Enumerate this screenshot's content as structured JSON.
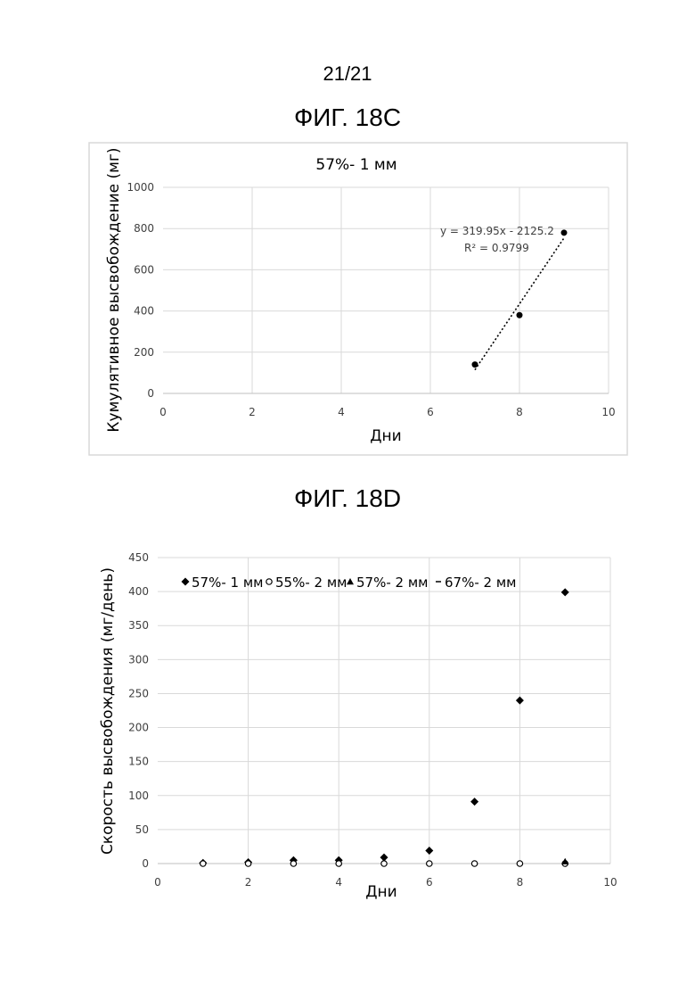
{
  "page_number": "21/21",
  "figures": [
    {
      "label": "ФИГ. 18C"
    },
    {
      "label": "ФИГ. 18D"
    }
  ],
  "chart_data": [
    {
      "type": "scatter",
      "title": "57%- 1 мм",
      "xlabel": "Дни",
      "ylabel": "Кумулятивное высвобождение (мг)",
      "xlim": [
        0,
        10
      ],
      "ylim": [
        0,
        1000
      ],
      "xticks": [
        0,
        2,
        4,
        6,
        8,
        10
      ],
      "yticks": [
        0,
        200,
        400,
        600,
        800,
        1000
      ],
      "grid": true,
      "series": [
        {
          "x": [
            7,
            8,
            9
          ],
          "y": [
            140,
            380,
            780
          ],
          "marker": "circle",
          "color": "#000000"
        }
      ],
      "trendline": {
        "type": "linear",
        "slope": 319.95,
        "intercept": -2125.2,
        "x_range": [
          7,
          9
        ],
        "equation": "y = 319.95x - 2125.2",
        "r_squared": "R² = 0.9799"
      }
    },
    {
      "type": "scatter",
      "title": "",
      "xlabel": "Дни",
      "ylabel": "Скорость высвобождения (мг/день)",
      "xlim": [
        0,
        10
      ],
      "ylim": [
        0,
        450
      ],
      "xticks": [
        0,
        2,
        4,
        6,
        8,
        10
      ],
      "yticks": [
        0,
        50,
        100,
        150,
        200,
        250,
        300,
        350,
        400,
        450
      ],
      "grid": true,
      "legend": "top-left",
      "series": [
        {
          "name": "57%- 1 мм",
          "marker": "diamond",
          "x": [
            1,
            2,
            3,
            4,
            5,
            6,
            7,
            8,
            9
          ],
          "y": [
            1,
            2,
            5,
            5,
            9,
            19,
            91,
            240,
            399
          ]
        },
        {
          "name": "55%- 2 мм",
          "marker": "circle-open",
          "x": [
            1,
            2,
            3,
            4,
            5,
            6,
            7,
            8,
            9
          ],
          "y": [
            0,
            0,
            0,
            0,
            0,
            0,
            0,
            0,
            0
          ]
        },
        {
          "name": "57%- 2 мм",
          "marker": "triangle",
          "x": [
            9
          ],
          "y": [
            3
          ]
        },
        {
          "name": "67%- 2 мм",
          "marker": "dash",
          "x": [],
          "y": []
        }
      ]
    }
  ]
}
